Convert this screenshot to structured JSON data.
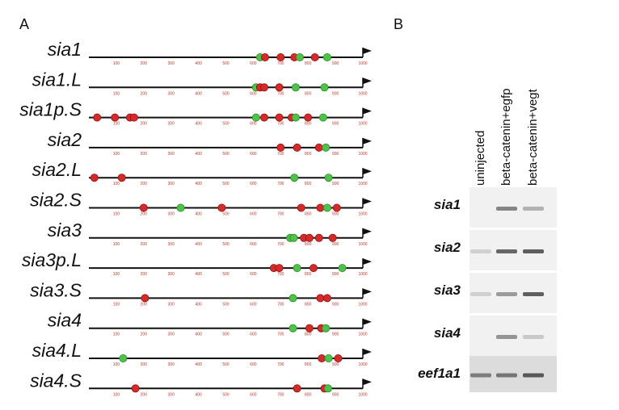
{
  "panels": {
    "a": "A",
    "b": "B"
  },
  "diagram": {
    "axis_ticks": [
      "100",
      "200",
      "300",
      "400",
      "500",
      "600",
      "700",
      "800",
      "900",
      "1000"
    ],
    "colors": {
      "red_site": "#d42a2a",
      "green_site": "#4fc24a",
      "line": "#111111",
      "tick_text": "#c0392b"
    },
    "rows": [
      {
        "gene": "sia1",
        "sites": [
          {
            "pos": 625,
            "c": "g"
          },
          {
            "pos": 643,
            "c": "r"
          },
          {
            "pos": 700,
            "c": "r"
          },
          {
            "pos": 750,
            "c": "r"
          },
          {
            "pos": 770,
            "c": "g"
          },
          {
            "pos": 825,
            "c": "r"
          },
          {
            "pos": 870,
            "c": "g"
          }
        ]
      },
      {
        "gene": "sia1.L",
        "sites": [
          {
            "pos": 610,
            "c": "g"
          },
          {
            "pos": 625,
            "c": "r"
          },
          {
            "pos": 640,
            "c": "r"
          },
          {
            "pos": 695,
            "c": "r"
          },
          {
            "pos": 755,
            "c": "g"
          },
          {
            "pos": 860,
            "c": "g"
          }
        ]
      },
      {
        "gene": "sia1p.S",
        "sites": [
          {
            "pos": 30,
            "c": "r"
          },
          {
            "pos": 95,
            "c": "r"
          },
          {
            "pos": 150,
            "c": "r"
          },
          {
            "pos": 165,
            "c": "r"
          },
          {
            "pos": 610,
            "c": "g"
          },
          {
            "pos": 640,
            "c": "r"
          },
          {
            "pos": 695,
            "c": "r"
          },
          {
            "pos": 740,
            "c": "r"
          },
          {
            "pos": 755,
            "c": "g"
          },
          {
            "pos": 800,
            "c": "r"
          },
          {
            "pos": 855,
            "c": "g"
          }
        ]
      },
      {
        "gene": "sia2",
        "sites": [
          {
            "pos": 700,
            "c": "r"
          },
          {
            "pos": 760,
            "c": "r"
          },
          {
            "pos": 840,
            "c": "r"
          },
          {
            "pos": 865,
            "c": "g"
          }
        ]
      },
      {
        "gene": "sia2.L",
        "sites": [
          {
            "pos": 20,
            "c": "r"
          },
          {
            "pos": 120,
            "c": "r"
          },
          {
            "pos": 750,
            "c": "g"
          },
          {
            "pos": 875,
            "c": "g"
          }
        ]
      },
      {
        "gene": "sia2.S",
        "sites": [
          {
            "pos": 200,
            "c": "r"
          },
          {
            "pos": 335,
            "c": "g"
          },
          {
            "pos": 485,
            "c": "r"
          },
          {
            "pos": 775,
            "c": "r"
          },
          {
            "pos": 845,
            "c": "r"
          },
          {
            "pos": 870,
            "c": "g"
          },
          {
            "pos": 905,
            "c": "r"
          }
        ]
      },
      {
        "gene": "sia3",
        "sites": [
          {
            "pos": 735,
            "c": "g"
          },
          {
            "pos": 748,
            "c": "g"
          },
          {
            "pos": 785,
            "c": "r"
          },
          {
            "pos": 805,
            "c": "r"
          },
          {
            "pos": 840,
            "c": "r"
          },
          {
            "pos": 890,
            "c": "r"
          }
        ]
      },
      {
        "gene": "sia3p.L",
        "sites": [
          {
            "pos": 675,
            "c": "r"
          },
          {
            "pos": 695,
            "c": "r"
          },
          {
            "pos": 760,
            "c": "g"
          },
          {
            "pos": 820,
            "c": "r"
          },
          {
            "pos": 925,
            "c": "g"
          }
        ]
      },
      {
        "gene": "sia3.S",
        "sites": [
          {
            "pos": 205,
            "c": "r"
          },
          {
            "pos": 745,
            "c": "g"
          },
          {
            "pos": 845,
            "c": "r"
          },
          {
            "pos": 870,
            "c": "r"
          }
        ]
      },
      {
        "gene": "sia4",
        "sites": [
          {
            "pos": 745,
            "c": "g"
          },
          {
            "pos": 805,
            "c": "r"
          },
          {
            "pos": 848,
            "c": "r"
          },
          {
            "pos": 865,
            "c": "g"
          }
        ]
      },
      {
        "gene": "sia4.L",
        "sites": [
          {
            "pos": 125,
            "c": "g"
          },
          {
            "pos": 850,
            "c": "r"
          },
          {
            "pos": 875,
            "c": "g"
          },
          {
            "pos": 910,
            "c": "r"
          }
        ]
      },
      {
        "gene": "sia4.S",
        "sites": [
          {
            "pos": 170,
            "c": "r"
          },
          {
            "pos": 760,
            "c": "r"
          },
          {
            "pos": 860,
            "c": "r"
          },
          {
            "pos": 873,
            "c": "g"
          }
        ]
      }
    ]
  },
  "gel": {
    "lanes": [
      "uninjected",
      "beta-catenin+egfp",
      "beta-catenin+vegt"
    ],
    "rows": [
      {
        "gene": "sia1",
        "bands": [
          0.0,
          0.55,
          0.25
        ]
      },
      {
        "gene": "sia2",
        "bands": [
          0.05,
          0.75,
          0.8
        ]
      },
      {
        "gene": "sia3",
        "bands": [
          0.05,
          0.4,
          0.8
        ]
      },
      {
        "gene": "sia4",
        "bands": [
          0.0,
          0.45,
          0.1
        ]
      },
      {
        "gene": "eef1a1",
        "bands": [
          0.6,
          0.65,
          0.85
        ]
      }
    ]
  }
}
